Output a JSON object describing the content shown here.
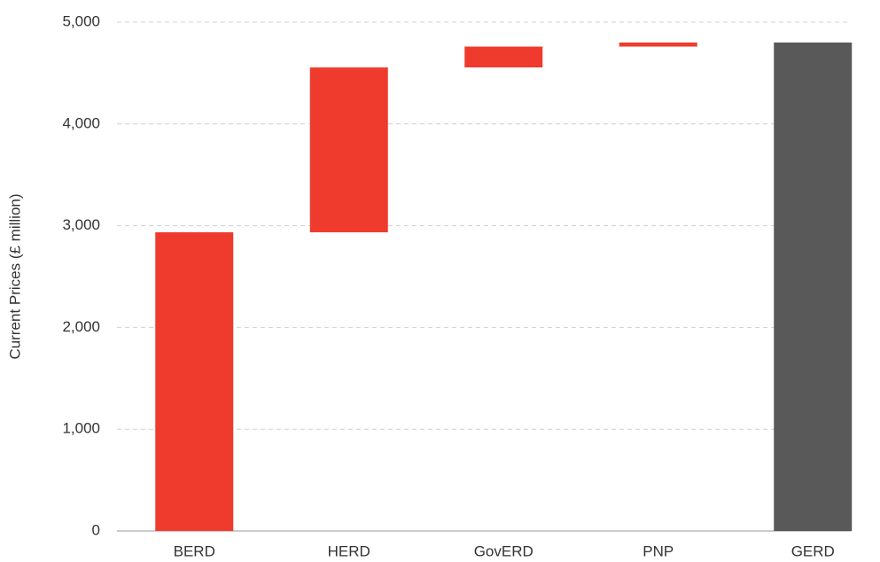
{
  "chart_data": {
    "type": "waterfall",
    "ylabel": "Current Prices (£ million)",
    "categories": [
      "BERD",
      "HERD",
      "GovERD",
      "PNP",
      "GERD"
    ],
    "values": [
      2935,
      1620,
      205,
      40,
      4800
    ],
    "is_total": [
      false,
      false,
      false,
      false,
      true
    ],
    "colors": [
      "#ee3b2d",
      "#ee3b2d",
      "#ee3b2d",
      "#ee3b2d",
      "#595959"
    ],
    "ylim": [
      0,
      5000
    ],
    "yticks": [
      0,
      {
        "value": 1000,
        "label": "1,000"
      },
      {
        "value": 2000,
        "label": "2,000"
      },
      {
        "value": 3000,
        "label": "3,000"
      },
      {
        "value": 4000,
        "label": "4,000"
      },
      {
        "value": 5000,
        "label": "5,000"
      }
    ],
    "grid": true
  }
}
